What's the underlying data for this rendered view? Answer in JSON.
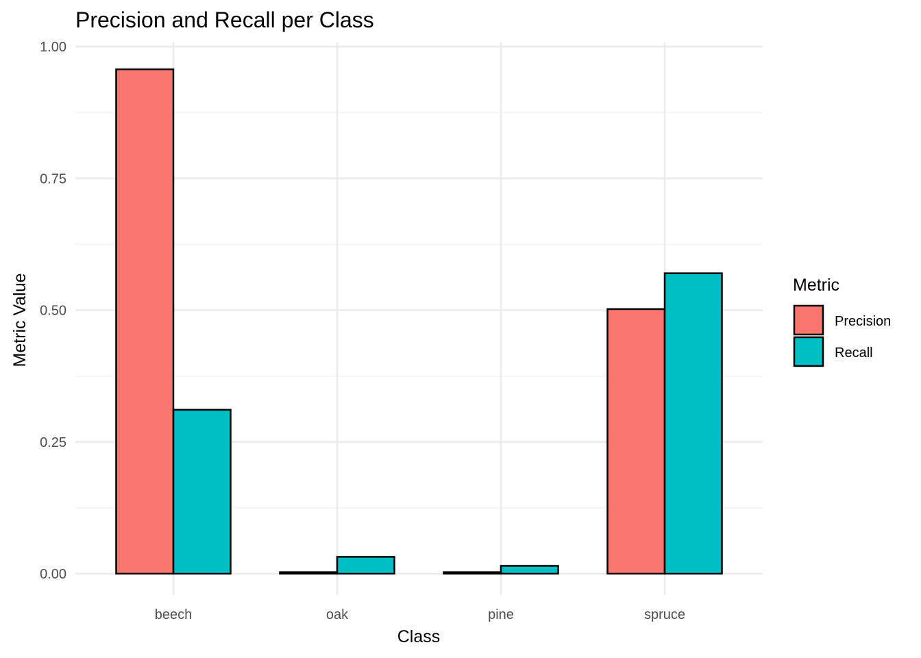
{
  "chart_data": {
    "type": "bar",
    "title": "Precision and Recall per Class",
    "xlabel": "Class",
    "ylabel": "Metric Value",
    "categories": [
      "beech",
      "oak",
      "pine",
      "spruce"
    ],
    "series": [
      {
        "name": "Precision",
        "color": "#F8766D",
        "values": [
          0.957,
          0.003,
          0.003,
          0.502
        ]
      },
      {
        "name": "Recall",
        "color": "#00BFC4",
        "values": [
          0.311,
          0.032,
          0.015,
          0.57
        ]
      }
    ],
    "ylim": [
      0,
      1
    ],
    "yticks": [
      "0.00",
      "0.25",
      "0.50",
      "0.75",
      "1.00"
    ],
    "ytick_values": [
      0,
      0.25,
      0.5,
      0.75,
      1.0
    ],
    "grid": true,
    "legend": {
      "title": "Metric",
      "position": "right"
    }
  }
}
